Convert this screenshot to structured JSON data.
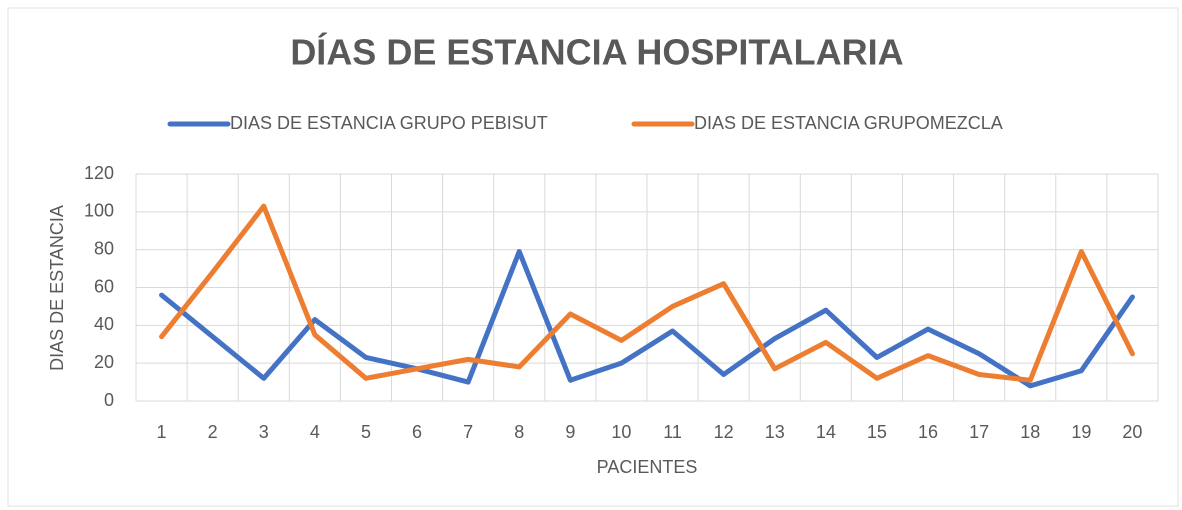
{
  "chart_data": {
    "type": "line",
    "title": "DÍAS DE ESTANCIA HOSPITALARIA",
    "x_label": "PACIENTES",
    "y_label": "DIAS DE ESTANCIA",
    "categories": [
      "1",
      "2",
      "3",
      "4",
      "5",
      "6",
      "7",
      "8",
      "9",
      "10",
      "11",
      "12",
      "13",
      "14",
      "15",
      "16",
      "17",
      "18",
      "19",
      "20"
    ],
    "series": [
      {
        "name": "DIAS DE ESTANCIA GRUPO PEBISUT",
        "color": "#4472c4",
        "values": [
          56,
          34,
          12,
          43,
          23,
          17,
          10,
          79,
          11,
          20,
          37,
          14,
          33,
          48,
          23,
          38,
          25,
          8,
          16,
          55
        ]
      },
      {
        "name": "DIAS DE ESTANCIA GRUPOMEZCLA",
        "color": "#ed7d31",
        "values": [
          34,
          68,
          103,
          35,
          12,
          17,
          22,
          18,
          46,
          32,
          50,
          62,
          17,
          31,
          12,
          24,
          14,
          11,
          79,
          25
        ]
      }
    ],
    "ylim": [
      0,
      120
    ],
    "yticks": [
      0,
      20,
      40,
      60,
      80,
      100,
      120
    ],
    "grid": true,
    "legend": "top"
  }
}
